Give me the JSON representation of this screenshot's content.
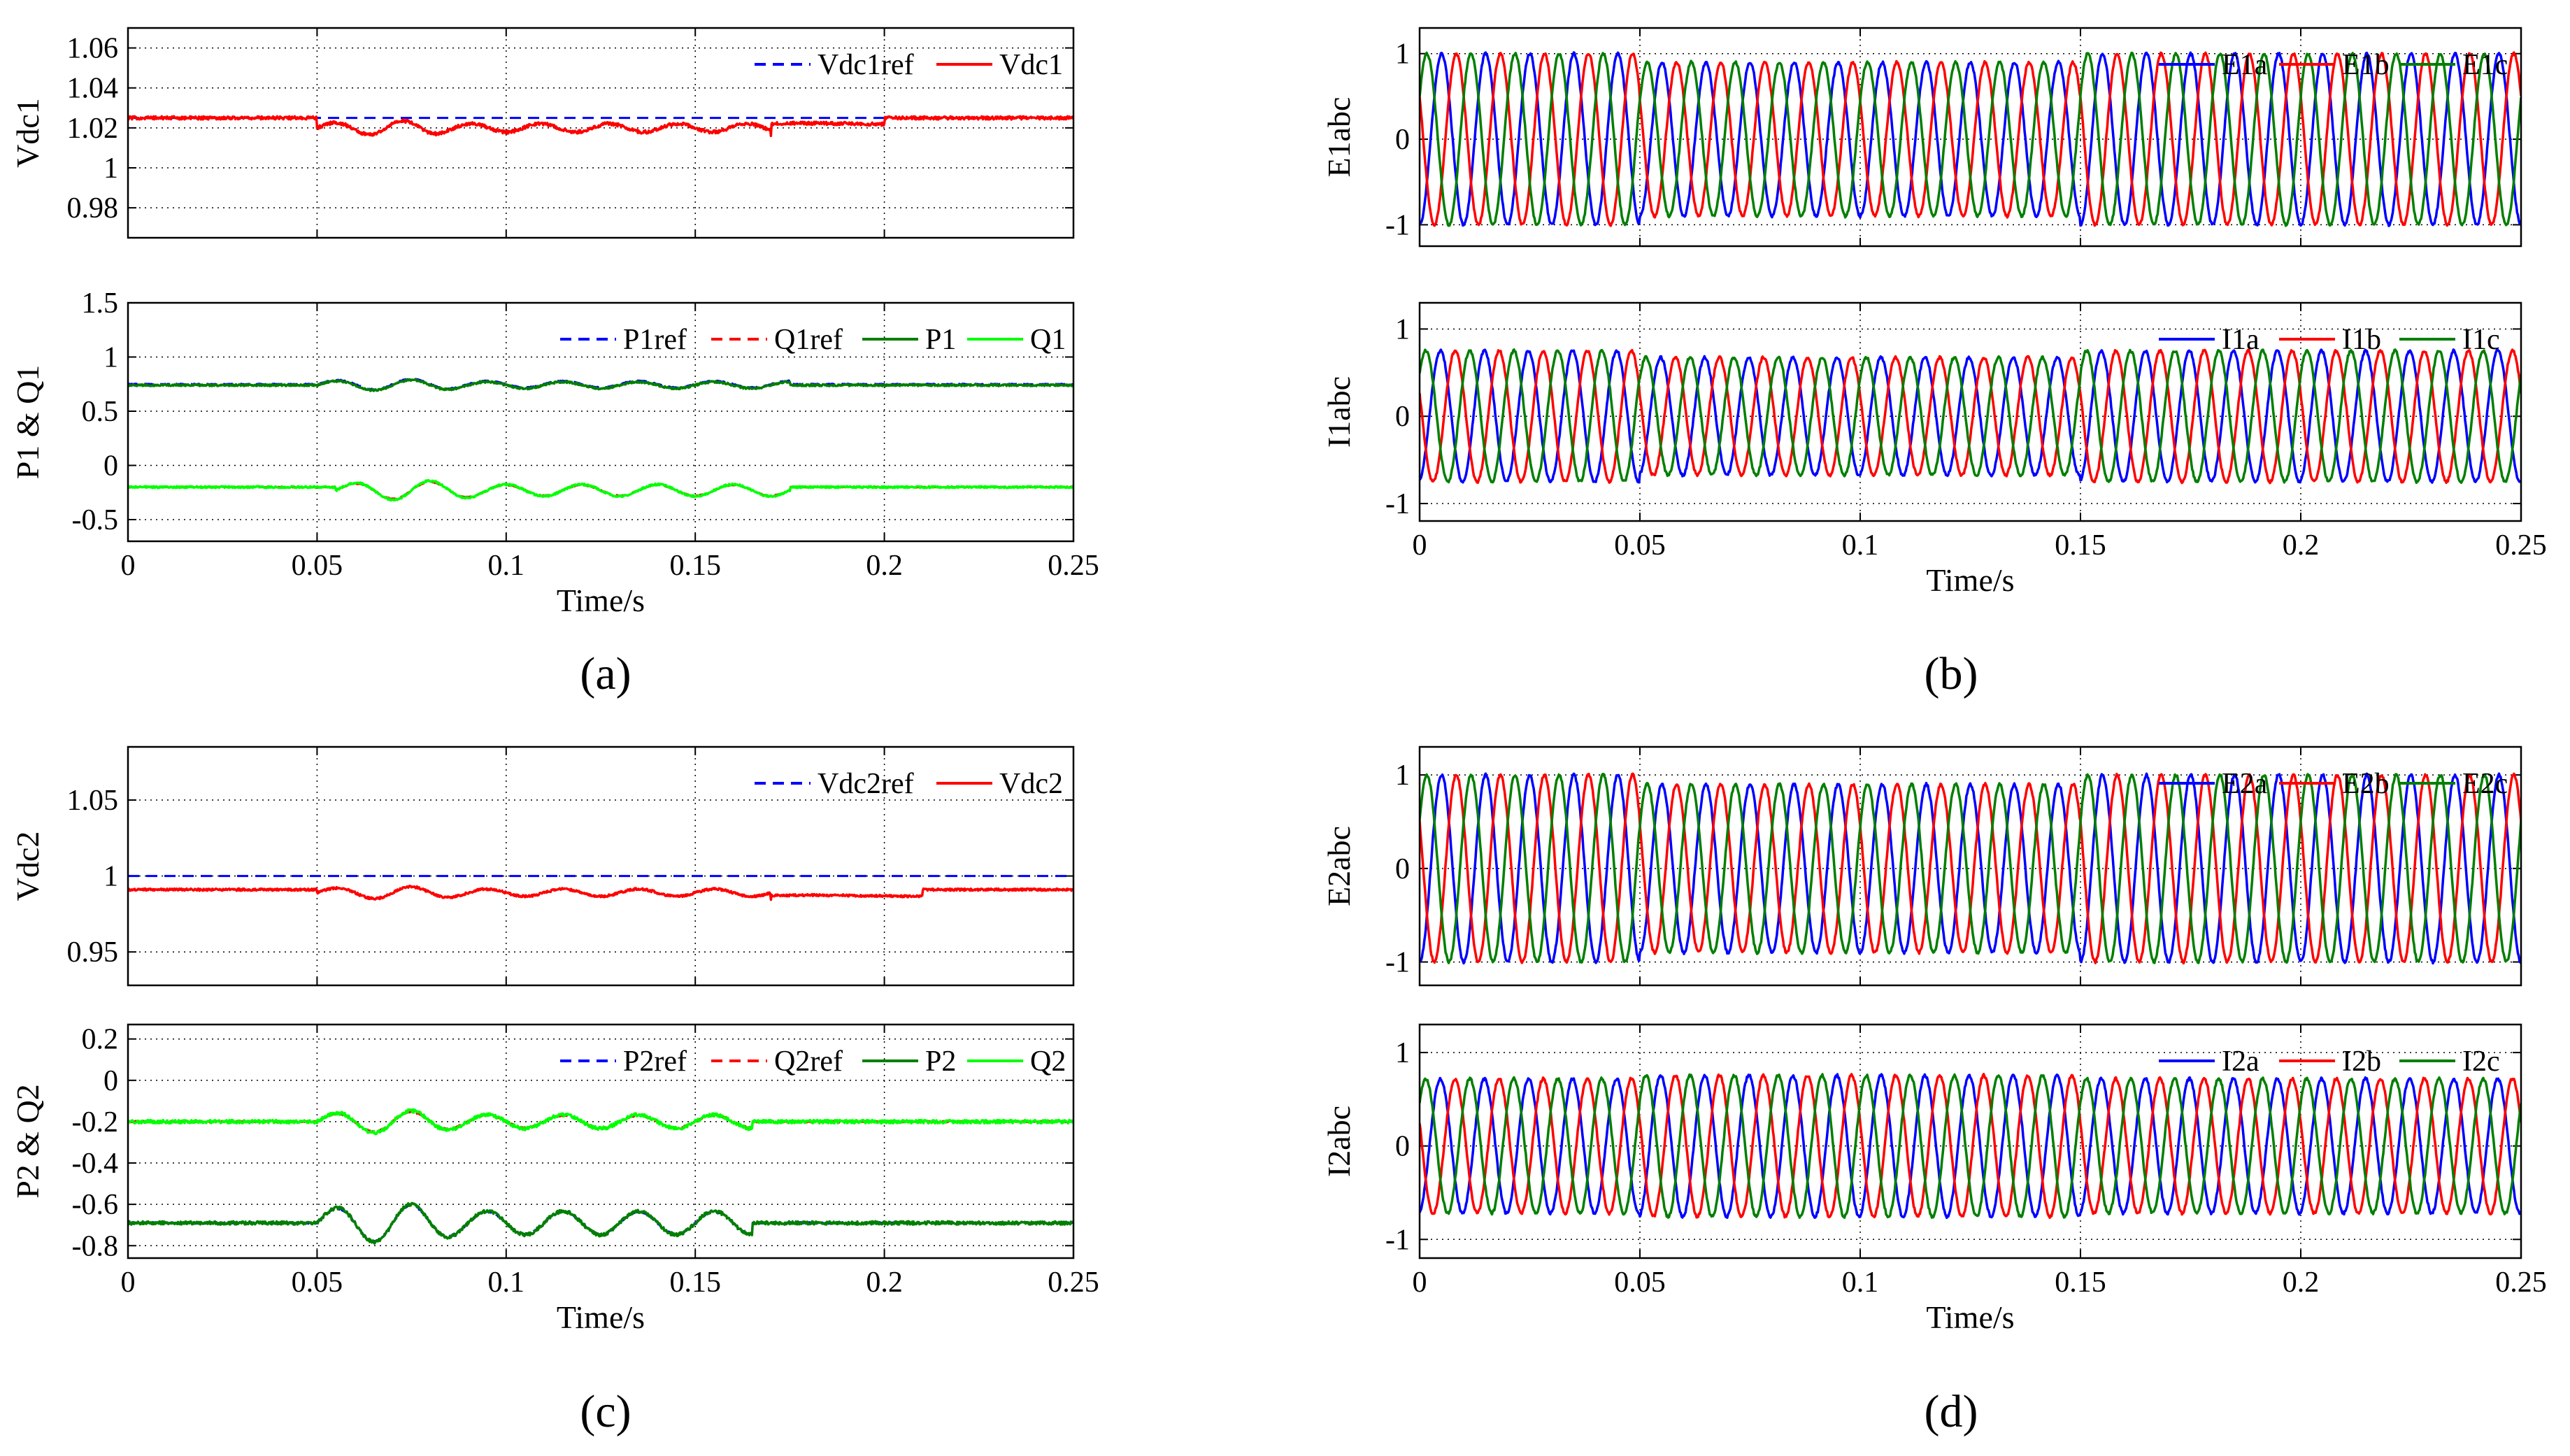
{
  "figure": {
    "captions": [
      "(a)",
      "(b)",
      "(c)",
      "(d)"
    ]
  },
  "chart_data": [
    {
      "id": "vdc1",
      "type": "line",
      "panel": "a",
      "ylabel": "Vdc1",
      "xlabel": "",
      "xlim": [
        0,
        0.25
      ],
      "ylim": [
        0.965,
        1.07
      ],
      "xticks": [
        "0",
        "0.05",
        "0.1",
        "0.15",
        "0.2",
        "0.25"
      ],
      "xticks_visible": false,
      "yticks": [
        0.98,
        1,
        1.02,
        1.04,
        1.06
      ],
      "ytick_labels": [
        "0.98",
        "1",
        "1.02",
        "1.04",
        "1.06"
      ],
      "legend": "top-right",
      "series": [
        {
          "name": "Vdc1ref",
          "color": "#0000ff",
          "style": "dashed",
          "model": {
            "kind": "const",
            "value": 1.025
          }
        },
        {
          "name": "Vdc1",
          "color": "#ff0000",
          "style": "solid",
          "model": {
            "kind": "dc",
            "base": 1.025,
            "noise": 0.0008,
            "events": [
              {
                "t0": 0.05,
                "t1": 0.17,
                "dip": -0.005,
                "osc": 0.0035,
                "freq": 55
              },
              {
                "t0": 0.17,
                "t1": 0.2,
                "dip": -0.003,
                "osc": 0.0005,
                "freq": 20
              }
            ]
          }
        }
      ]
    },
    {
      "id": "pq1",
      "type": "line",
      "panel": "a",
      "ylabel": "P1 & Q1",
      "xlabel": "Time/s",
      "xlim": [
        0,
        0.25
      ],
      "ylim": [
        -0.7,
        1.5
      ],
      "xticks": [
        "0",
        "0.05",
        "0.1",
        "0.15",
        "0.2",
        "0.25"
      ],
      "xticks_visible": true,
      "yticks": [
        -0.5,
        0,
        0.5,
        1,
        1.5
      ],
      "ytick_labels": [
        "-0.5",
        "0",
        "0.5",
        "1",
        "1.5"
      ],
      "legend": "top-right",
      "series": [
        {
          "name": "P1ref",
          "color": "#0000ff",
          "style": "dashed",
          "model": {
            "kind": "dc",
            "base": 0.75,
            "noise": 0.004,
            "events": [
              {
                "t0": 0.05,
                "t1": 0.175,
                "dip": 0,
                "osc": 0.05,
                "freq": 50
              }
            ]
          }
        },
        {
          "name": "Q1ref",
          "color": "#ff0000",
          "style": "dashed",
          "model": {
            "kind": "dc",
            "base": -0.2,
            "noise": 0.004,
            "events": [
              {
                "t0": 0.055,
                "t1": 0.175,
                "dip": -0.03,
                "osc": 0.08,
                "freq": 50
              }
            ]
          }
        },
        {
          "name": "P1",
          "color": "#007f00",
          "style": "solid",
          "model": {
            "kind": "dc",
            "base": 0.74,
            "noise": 0.008,
            "events": [
              {
                "t0": 0.05,
                "t1": 0.175,
                "dip": 0,
                "osc": 0.05,
                "freq": 50
              }
            ]
          }
        },
        {
          "name": "Q1",
          "color": "#00ff00",
          "style": "solid",
          "model": {
            "kind": "dc",
            "base": -0.2,
            "noise": 0.008,
            "events": [
              {
                "t0": 0.055,
                "t1": 0.175,
                "dip": -0.03,
                "osc": 0.09,
                "freq": 50
              }
            ]
          }
        }
      ]
    },
    {
      "id": "e1",
      "type": "line",
      "panel": "b",
      "ylabel": "E1abc",
      "xlabel": "",
      "xlim": [
        0,
        0.25
      ],
      "ylim": [
        -1.25,
        1.3
      ],
      "xticks": [
        "0",
        "0.05",
        "0.1",
        "0.15",
        "0.2",
        "0.25"
      ],
      "xticks_visible": false,
      "yticks": [
        -1,
        0,
        1
      ],
      "ytick_labels": [
        "-1",
        "0",
        "1"
      ],
      "legend": "top-right",
      "series": [
        {
          "name": "E1a",
          "color": "#0000ff",
          "style": "solid",
          "model": {
            "kind": "sine",
            "amp": 1.0,
            "freq": 100,
            "phase": -90,
            "noise": 0.015,
            "sag": [
              {
                "t0": 0.05,
                "t1": 0.15,
                "amp": 0.9
              }
            ]
          }
        },
        {
          "name": "E1b",
          "color": "#ff0000",
          "style": "solid",
          "model": {
            "kind": "sine",
            "amp": 1.0,
            "freq": 100,
            "phase": 150,
            "noise": 0.015,
            "sag": [
              {
                "t0": 0.05,
                "t1": 0.15,
                "amp": 0.9
              }
            ]
          }
        },
        {
          "name": "E1c",
          "color": "#007f00",
          "style": "solid",
          "model": {
            "kind": "sine",
            "amp": 1.0,
            "freq": 100,
            "phase": 30,
            "noise": 0.015,
            "sag": [
              {
                "t0": 0.05,
                "t1": 0.15,
                "amp": 0.9
              }
            ]
          }
        }
      ]
    },
    {
      "id": "i1",
      "type": "line",
      "panel": "b",
      "ylabel": "I1abc",
      "xlabel": "Time/s",
      "xlim": [
        0,
        0.25
      ],
      "ylim": [
        -1.2,
        1.3
      ],
      "xticks": [
        "0",
        "0.05",
        "0.1",
        "0.15",
        "0.2",
        "0.25"
      ],
      "xticks_visible": true,
      "yticks": [
        -1,
        0,
        1
      ],
      "ytick_labels": [
        "-1",
        "0",
        "1"
      ],
      "legend": "top-right",
      "series": [
        {
          "name": "I1a",
          "color": "#0000ff",
          "style": "solid",
          "model": {
            "kind": "sine",
            "amp": 0.75,
            "freq": 100,
            "phase": -80,
            "noise": 0.015,
            "sag": [
              {
                "t0": 0.05,
                "t1": 0.15,
                "amp": 0.9
              }
            ]
          }
        },
        {
          "name": "I1b",
          "color": "#ff0000",
          "style": "solid",
          "model": {
            "kind": "sine",
            "amp": 0.75,
            "freq": 100,
            "phase": 160,
            "noise": 0.015,
            "sag": [
              {
                "t0": 0.05,
                "t1": 0.15,
                "amp": 0.9
              }
            ]
          }
        },
        {
          "name": "I1c",
          "color": "#007f00",
          "style": "solid",
          "model": {
            "kind": "sine",
            "amp": 0.75,
            "freq": 100,
            "phase": 40,
            "noise": 0.015,
            "sag": [
              {
                "t0": 0.05,
                "t1": 0.15,
                "amp": 0.9
              }
            ]
          }
        }
      ]
    },
    {
      "id": "vdc2",
      "type": "line",
      "panel": "c",
      "ylabel": "Vdc2",
      "xlabel": "",
      "xlim": [
        0,
        0.25
      ],
      "ylim": [
        0.928,
        1.085
      ],
      "xticks": [
        "0",
        "0.05",
        "0.1",
        "0.15",
        "0.2",
        "0.25"
      ],
      "xticks_visible": false,
      "yticks": [
        0.95,
        1,
        1.05
      ],
      "ytick_labels": [
        "0.95",
        "1",
        "1.05"
      ],
      "legend": "top-right",
      "series": [
        {
          "name": "Vdc2ref",
          "color": "#0000ff",
          "style": "dashed",
          "model": {
            "kind": "const",
            "value": 1.0
          }
        },
        {
          "name": "Vdc2",
          "color": "#ff0000",
          "style": "solid",
          "model": {
            "kind": "dc",
            "base": 0.991,
            "noise": 0.0007,
            "events": [
              {
                "t0": 0.05,
                "t1": 0.17,
                "dip": -0.002,
                "osc": 0.004,
                "freq": 50
              },
              {
                "t0": 0.17,
                "t1": 0.21,
                "dip": -0.004,
                "osc": 0.0005,
                "freq": 20
              }
            ]
          }
        }
      ]
    },
    {
      "id": "pq2",
      "type": "line",
      "panel": "c",
      "ylabel": "P2 & Q2",
      "xlabel": "Time/s",
      "xlim": [
        0,
        0.25
      ],
      "ylim": [
        -0.86,
        0.27
      ],
      "xticks": [
        "0",
        "0.05",
        "0.1",
        "0.15",
        "0.2",
        "0.25"
      ],
      "xticks_visible": true,
      "yticks": [
        -0.8,
        -0.6,
        -0.4,
        -0.2,
        0,
        0.2
      ],
      "ytick_labels": [
        "-0.8",
        "-0.6",
        "-0.4",
        "-0.2",
        "0",
        "0.2"
      ],
      "legend": "top-right",
      "series": [
        {
          "name": "P2ref",
          "color": "#0000ff",
          "style": "dashed",
          "model": {
            "kind": "dc",
            "base": -0.69,
            "noise": 0.004,
            "events": [
              {
                "t0": 0.05,
                "t1": 0.165,
                "dip": 0,
                "osc": 0.09,
                "freq": 50
              }
            ]
          }
        },
        {
          "name": "Q2ref",
          "color": "#ff0000",
          "style": "dashed",
          "model": {
            "kind": "dc",
            "base": -0.2,
            "noise": 0.004,
            "events": [
              {
                "t0": 0.05,
                "t1": 0.165,
                "dip": 0,
                "osc": 0.05,
                "freq": 50
              }
            ]
          }
        },
        {
          "name": "P2",
          "color": "#007f00",
          "style": "solid",
          "model": {
            "kind": "dc",
            "base": -0.69,
            "noise": 0.008,
            "events": [
              {
                "t0": 0.05,
                "t1": 0.165,
                "dip": 0,
                "osc": 0.095,
                "freq": 50
              }
            ]
          }
        },
        {
          "name": "Q2",
          "color": "#00ff00",
          "style": "solid",
          "model": {
            "kind": "dc",
            "base": -0.2,
            "noise": 0.008,
            "events": [
              {
                "t0": 0.05,
                "t1": 0.165,
                "dip": 0,
                "osc": 0.055,
                "freq": 50
              }
            ]
          }
        }
      ]
    },
    {
      "id": "e2",
      "type": "line",
      "panel": "d",
      "ylabel": "E2abc",
      "xlabel": "",
      "xlim": [
        0,
        0.25
      ],
      "ylim": [
        -1.25,
        1.3
      ],
      "xticks": [
        "0",
        "0.05",
        "0.1",
        "0.15",
        "0.2",
        "0.25"
      ],
      "xticks_visible": false,
      "yticks": [
        -1,
        0,
        1
      ],
      "ytick_labels": [
        "-1",
        "0",
        "1"
      ],
      "legend": "top-right",
      "series": [
        {
          "name": "E2a",
          "color": "#0000ff",
          "style": "solid",
          "model": {
            "kind": "sine",
            "amp": 1.0,
            "freq": 100,
            "phase": -90,
            "noise": 0.015,
            "sag": [
              {
                "t0": 0.05,
                "t1": 0.15,
                "amp": 0.9
              }
            ]
          }
        },
        {
          "name": "E2b",
          "color": "#ff0000",
          "style": "solid",
          "model": {
            "kind": "sine",
            "amp": 1.0,
            "freq": 100,
            "phase": 150,
            "noise": 0.015,
            "sag": [
              {
                "t0": 0.05,
                "t1": 0.15,
                "amp": 0.9
              }
            ]
          }
        },
        {
          "name": "E2c",
          "color": "#007f00",
          "style": "solid",
          "model": {
            "kind": "sine",
            "amp": 1.0,
            "freq": 100,
            "phase": 30,
            "noise": 0.015,
            "sag": [
              {
                "t0": 0.05,
                "t1": 0.15,
                "amp": 0.9
              }
            ]
          }
        }
      ]
    },
    {
      "id": "i2",
      "type": "line",
      "panel": "d",
      "ylabel": "I2abc",
      "xlabel": "Time/s",
      "xlim": [
        0,
        0.25
      ],
      "ylim": [
        -1.2,
        1.3
      ],
      "xticks": [
        "0",
        "0.05",
        "0.1",
        "0.15",
        "0.2",
        "0.25"
      ],
      "xticks_visible": true,
      "yticks": [
        -1,
        0,
        1
      ],
      "ytick_labels": [
        "-1",
        "0",
        "1"
      ],
      "legend": "top-right",
      "series": [
        {
          "name": "I2a",
          "color": "#0000ff",
          "style": "solid",
          "model": {
            "kind": "sine",
            "amp": 0.72,
            "freq": 100,
            "phase": -80,
            "noise": 0.015,
            "sag": [
              {
                "t0": 0.05,
                "t1": 0.15,
                "amp": 1.05
              }
            ]
          }
        },
        {
          "name": "I2b",
          "color": "#ff0000",
          "style": "solid",
          "model": {
            "kind": "sine",
            "amp": 0.72,
            "freq": 100,
            "phase": 160,
            "noise": 0.015,
            "sag": [
              {
                "t0": 0.05,
                "t1": 0.15,
                "amp": 1.05
              }
            ]
          }
        },
        {
          "name": "I2c",
          "color": "#007f00",
          "style": "solid",
          "model": {
            "kind": "sine",
            "amp": 0.72,
            "freq": 100,
            "phase": 40,
            "noise": 0.015,
            "sag": [
              {
                "t0": 0.05,
                "t1": 0.15,
                "amp": 1.05
              }
            ]
          }
        }
      ]
    }
  ]
}
